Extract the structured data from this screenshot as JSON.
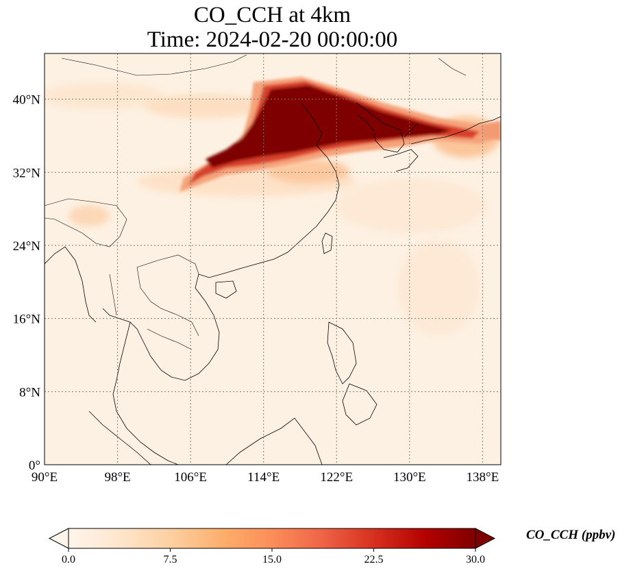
{
  "title": {
    "line1": "CO_CCH at 4km",
    "line2": "Time: 2024-02-20 00:00:00"
  },
  "map": {
    "lon_range": [
      90,
      140
    ],
    "lat_range": [
      0,
      45
    ],
    "lon_ticks": [
      "90°E",
      "98°E",
      "106°E",
      "114°E",
      "122°E",
      "130°E",
      "138°E"
    ],
    "lat_ticks": [
      "0°",
      "8°N",
      "16°N",
      "24°N",
      "32°N",
      "40°N"
    ],
    "gridlines": true,
    "variable": "CO_CCH",
    "plume_description_regions": [
      {
        "lon": 118,
        "lat": 37.5,
        "value": 30
      },
      {
        "lon": 126,
        "lat": 37,
        "value": 28
      },
      {
        "lon": 110,
        "lat": 33,
        "value": 25
      },
      {
        "lon": 134,
        "lat": 36,
        "value": 18
      }
    ]
  },
  "colorbar": {
    "label": "CO_CCH (ppbv)",
    "range": [
      0.0,
      30.0
    ],
    "ticks": [
      "0.0",
      "7.5",
      "15.0",
      "22.5",
      "30.0"
    ],
    "colors": [
      "#fff5eb",
      "#fee6ce",
      "#fdd0a2",
      "#fdae6b",
      "#fd8d3c",
      "#f16913",
      "#d94801",
      "#b30000",
      "#7f0000"
    ],
    "extend": "both"
  }
}
